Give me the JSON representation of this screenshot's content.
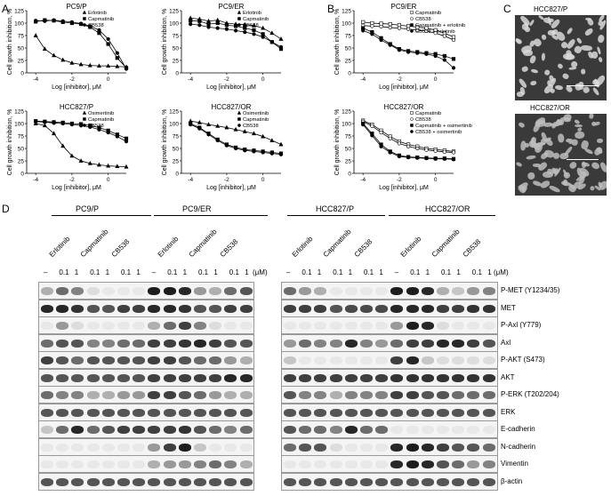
{
  "panel_letters": {
    "A": "A",
    "B": "B",
    "C": "C",
    "D": "D"
  },
  "axis": {
    "ylabel": "Cell growth inhibition, %",
    "xlabel": "Log [inhibitor], μM",
    "yticks": [
      "0",
      "25",
      "50",
      "75",
      "100",
      "125"
    ],
    "xticks": [
      "-4",
      "-2",
      "0"
    ]
  },
  "chart_data": [
    {
      "type": "line",
      "title": "PC9/P",
      "xlim": [
        -4.5,
        1
      ],
      "ylim": [
        0,
        125
      ],
      "legend": "top-right",
      "series": [
        {
          "name": "Erlotinib",
          "marker": "triangle",
          "x": [
            -4,
            -3.5,
            -3,
            -2.5,
            -2,
            -1.5,
            -1,
            -0.5,
            0,
            0.5,
            1
          ],
          "values": [
            75,
            48,
            35,
            26,
            20,
            17,
            15,
            14,
            14,
            13,
            12
          ]
        },
        {
          "name": "Capmatinib",
          "marker": "square",
          "x": [
            -4,
            -3.5,
            -3,
            -2.5,
            -2,
            -1.5,
            -1,
            -0.5,
            0,
            0.5,
            1
          ],
          "values": [
            103,
            106,
            105,
            102,
            100,
            98,
            92,
            80,
            58,
            30,
            10
          ]
        },
        {
          "name": "CB538",
          "marker": "circle",
          "x": [
            -4,
            -3.5,
            -3,
            -2.5,
            -2,
            -1.5,
            -1,
            -0.5,
            0,
            0.5,
            1
          ],
          "values": [
            105,
            104,
            106,
            104,
            102,
            99,
            94,
            86,
            68,
            40,
            8
          ]
        }
      ]
    },
    {
      "type": "line",
      "title": "PC9/ER",
      "xlim": [
        -4.5,
        1
      ],
      "ylim": [
        0,
        125
      ],
      "legend": "top-right",
      "series": [
        {
          "name": "Erlotinib",
          "marker": "triangle",
          "x": [
            -4,
            -3.5,
            -3,
            -2.5,
            -2,
            -1.5,
            -1,
            -0.5,
            0,
            0.5,
            1
          ],
          "values": [
            110,
            108,
            104,
            106,
            100,
            98,
            97,
            95,
            90,
            80,
            68
          ]
        },
        {
          "name": "Capmatinib",
          "marker": "square",
          "x": [
            -4,
            -3.5,
            -3,
            -2.5,
            -2,
            -1.5,
            -1,
            -0.5,
            0,
            0.5,
            1
          ],
          "values": [
            105,
            104,
            98,
            100,
            96,
            94,
            90,
            86,
            78,
            62,
            48
          ]
        },
        {
          "name": "CB538",
          "marker": "circle",
          "x": [
            -4,
            -3.5,
            -3,
            -2.5,
            -2,
            -1.5,
            -1,
            -0.5,
            0,
            0.5,
            1
          ],
          "values": [
            98,
            96,
            92,
            90,
            88,
            85,
            82,
            78,
            72,
            62,
            52
          ]
        }
      ]
    },
    {
      "type": "line",
      "title": "PC9/ER",
      "xlim": [
        -4.5,
        1
      ],
      "ylim": [
        0,
        125
      ],
      "legend": "top-right",
      "series": [
        {
          "name": "Capmatinib",
          "marker": "open-square",
          "x": [
            -4,
            -3.5,
            -3,
            -2.5,
            -2,
            -1.5,
            -1,
            -0.5,
            0,
            0.5,
            1
          ],
          "values": [
            102,
            100,
            99,
            98,
            96,
            94,
            92,
            90,
            86,
            80,
            72
          ]
        },
        {
          "name": "CB538",
          "marker": "open-circle",
          "x": [
            -4,
            -3.5,
            -3,
            -2.5,
            -2,
            -1.5,
            -1,
            -0.5,
            0,
            0.5,
            1
          ],
          "values": [
            95,
            94,
            93,
            91,
            90,
            88,
            86,
            84,
            80,
            74,
            66
          ]
        },
        {
          "name": "Capmatinib + erlotinib",
          "marker": "square",
          "x": [
            -4,
            -3.5,
            -3,
            -2.5,
            -2,
            -1.5,
            -1,
            -0.5,
            0,
            0.5,
            1
          ],
          "values": [
            90,
            82,
            70,
            58,
            48,
            44,
            42,
            40,
            38,
            34,
            28
          ]
        },
        {
          "name": "CB538 + erlotinib",
          "marker": "circle",
          "x": [
            -4,
            -3.5,
            -3,
            -2.5,
            -2,
            -1.5,
            -1,
            -0.5,
            0,
            0.5,
            1
          ],
          "values": [
            85,
            78,
            66,
            56,
            46,
            42,
            40,
            38,
            34,
            26,
            10
          ]
        }
      ]
    },
    {
      "type": "line",
      "title": "HCC827/P",
      "xlim": [
        -4.5,
        1
      ],
      "ylim": [
        0,
        125
      ],
      "legend": "top-right",
      "series": [
        {
          "name": "Osimertinib",
          "marker": "triangle",
          "x": [
            -4,
            -3.5,
            -3,
            -2.5,
            -2,
            -1.5,
            -1,
            -0.5,
            0,
            0.5,
            1
          ],
          "values": [
            100,
            96,
            80,
            55,
            35,
            25,
            20,
            17,
            15,
            14,
            13
          ]
        },
        {
          "name": "Capmatinib",
          "marker": "square",
          "x": [
            -4,
            -3.5,
            -3,
            -2.5,
            -2,
            -1.5,
            -1,
            -0.5,
            0,
            0.5,
            1
          ],
          "values": [
            105,
            104,
            103,
            102,
            100,
            99,
            96,
            92,
            86,
            78,
            70
          ]
        },
        {
          "name": "CB538",
          "marker": "circle",
          "x": [
            -4,
            -3.5,
            -3,
            -2.5,
            -2,
            -1.5,
            -1,
            -0.5,
            0,
            0.5,
            1
          ],
          "values": [
            104,
            103,
            101,
            100,
            98,
            96,
            93,
            88,
            82,
            74,
            64
          ]
        }
      ]
    },
    {
      "type": "line",
      "title": "HCC827/OR",
      "xlim": [
        -4.5,
        1
      ],
      "ylim": [
        0,
        125
      ],
      "legend": "top-right",
      "series": [
        {
          "name": "Osimertinib",
          "marker": "triangle",
          "x": [
            -4,
            -3.5,
            -3,
            -2.5,
            -2,
            -1.5,
            -1,
            -0.5,
            0,
            0.5,
            1
          ],
          "values": [
            105,
            102,
            98,
            95,
            92,
            88,
            84,
            80,
            74,
            66,
            58
          ]
        },
        {
          "name": "Capmatinib",
          "marker": "square",
          "x": [
            -4,
            -3.5,
            -3,
            -2.5,
            -2,
            -1.5,
            -1,
            -0.5,
            0,
            0.5,
            1
          ],
          "values": [
            100,
            92,
            80,
            68,
            58,
            52,
            48,
            46,
            44,
            42,
            40
          ]
        },
        {
          "name": "CB538",
          "marker": "circle",
          "x": [
            -4,
            -3.5,
            -3,
            -2.5,
            -2,
            -1.5,
            -1,
            -0.5,
            0,
            0.5,
            1
          ],
          "values": [
            98,
            90,
            78,
            66,
            56,
            50,
            46,
            44,
            42,
            40,
            38
          ]
        }
      ]
    },
    {
      "type": "line",
      "title": "HCC827/OR",
      "xlim": [
        -4.5,
        1
      ],
      "ylim": [
        0,
        125
      ],
      "legend": "top-right",
      "series": [
        {
          "name": "Capmatinib",
          "marker": "open-square",
          "x": [
            -4,
            -3.5,
            -3,
            -2.5,
            -2,
            -1.5,
            -1,
            -0.5,
            0,
            0.5,
            1
          ],
          "values": [
            106,
            98,
            86,
            74,
            64,
            58,
            54,
            50,
            48,
            46,
            44
          ]
        },
        {
          "name": "CB538",
          "marker": "open-circle",
          "x": [
            -4,
            -3.5,
            -3,
            -2.5,
            -2,
            -1.5,
            -1,
            -0.5,
            0,
            0.5,
            1
          ],
          "values": [
            104,
            95,
            82,
            70,
            60,
            54,
            50,
            47,
            45,
            43,
            42
          ]
        },
        {
          "name": "Capmatinib + osimertinib",
          "marker": "square",
          "x": [
            -4,
            -3.5,
            -3,
            -2.5,
            -2,
            -1.5,
            -1,
            -0.5,
            0,
            0.5,
            1
          ],
          "values": [
            100,
            80,
            58,
            44,
            36,
            33,
            32,
            31,
            30,
            30,
            29
          ]
        },
        {
          "name": "CB538 + osimertinib",
          "marker": "circle",
          "x": [
            -4,
            -3.5,
            -3,
            -2.5,
            -2,
            -1.5,
            -1,
            -0.5,
            0,
            0.5,
            1
          ],
          "values": [
            98,
            76,
            54,
            42,
            34,
            32,
            31,
            30,
            29,
            29,
            28
          ]
        }
      ]
    }
  ],
  "micrographs": [
    {
      "label": "HCC827/P"
    },
    {
      "label": "HCC827/OR"
    }
  ],
  "blot": {
    "groups_left": [
      "PC9/P",
      "PC9/ER"
    ],
    "groups_right": [
      "HCC827/P",
      "HCC827/OR"
    ],
    "drugs_left": [
      "Erlotinib",
      "Capmatinib",
      "CB538",
      "Erlotinib",
      "Capmatinib",
      "CB538"
    ],
    "drugs_right": [
      "Erlotinib",
      "Capmatinib",
      "CB538",
      "Erlotinib",
      "Capmatinib",
      "CB538"
    ],
    "dose_labels": [
      "–",
      "0.1",
      "1",
      "0.1",
      "1",
      "0.1",
      "1"
    ],
    "unit": "(μM)",
    "rows": [
      {
        "label": "P-MET (Y1234/35)",
        "left": [
          0.3,
          0.6,
          0.5,
          0.1,
          0.05,
          0.05,
          0.05,
          0.95,
          0.95,
          0.9,
          0.4,
          0.3,
          0.6,
          0.7
        ],
        "right": [
          0.6,
          0.4,
          0.3,
          0.05,
          0.05,
          0.05,
          0.05,
          0.95,
          0.95,
          0.9,
          0.3,
          0.2,
          0.4,
          0.5
        ]
      },
      {
        "label": "MET",
        "left": [
          0.9,
          0.9,
          0.85,
          0.7,
          0.7,
          0.8,
          0.8,
          0.9,
          0.9,
          0.85,
          0.7,
          0.7,
          0.8,
          0.8
        ],
        "right": [
          0.8,
          0.8,
          0.8,
          0.7,
          0.75,
          0.75,
          0.75,
          0.9,
          0.9,
          0.9,
          0.8,
          0.8,
          0.85,
          0.85
        ]
      },
      {
        "label": "P-Axl (Y779)",
        "left": [
          0.05,
          0.4,
          0.1,
          0.05,
          0.05,
          0.05,
          0.05,
          0.3,
          0.6,
          0.8,
          0.5,
          0.1,
          0.05,
          0.05
        ],
        "right": [
          0.05,
          0.05,
          0.05,
          0.05,
          0.05,
          0.05,
          0.05,
          0.4,
          0.95,
          0.9,
          0.1,
          0.05,
          0.05,
          0.05
        ]
      },
      {
        "label": "Axl",
        "left": [
          0.6,
          0.7,
          0.7,
          0.5,
          0.5,
          0.6,
          0.6,
          0.8,
          0.8,
          0.85,
          0.9,
          0.8,
          0.7,
          0.7
        ],
        "right": [
          0.4,
          0.6,
          0.5,
          0.5,
          0.9,
          0.5,
          0.4,
          0.6,
          0.8,
          0.8,
          0.9,
          0.9,
          0.8,
          0.7
        ]
      },
      {
        "label": "P-AKT (S473)",
        "left": [
          0.8,
          0.7,
          0.6,
          0.7,
          0.7,
          0.7,
          0.7,
          0.8,
          0.8,
          0.7,
          0.6,
          0.6,
          0.4,
          0.3
        ],
        "right": [
          0.2,
          0.05,
          0.05,
          0.05,
          0.05,
          0.05,
          0.05,
          0.8,
          0.9,
          0.2,
          0.1,
          0.1,
          0.1,
          0.1
        ]
      },
      {
        "label": "AKT",
        "left": [
          0.7,
          0.7,
          0.7,
          0.7,
          0.7,
          0.7,
          0.7,
          0.8,
          0.8,
          0.8,
          0.8,
          0.8,
          0.9,
          0.9
        ],
        "right": [
          0.8,
          0.8,
          0.8,
          0.8,
          0.8,
          0.8,
          0.8,
          0.85,
          0.85,
          0.85,
          0.85,
          0.85,
          0.85,
          0.85
        ]
      },
      {
        "label": "P-ERK (T202/204)",
        "left": [
          0.6,
          0.5,
          0.5,
          0.3,
          0.3,
          0.4,
          0.4,
          0.8,
          0.8,
          0.7,
          0.6,
          0.4,
          0.3,
          0.3
        ],
        "right": [
          0.7,
          0.5,
          0.5,
          0.3,
          0.5,
          0.5,
          0.5,
          0.8,
          0.8,
          0.7,
          0.7,
          0.6,
          0.6,
          0.6
        ]
      },
      {
        "label": "ERK",
        "left": [
          0.7,
          0.7,
          0.7,
          0.7,
          0.7,
          0.7,
          0.7,
          0.7,
          0.7,
          0.7,
          0.7,
          0.7,
          0.7,
          0.7
        ],
        "right": [
          0.7,
          0.7,
          0.7,
          0.7,
          0.7,
          0.7,
          0.7,
          0.7,
          0.7,
          0.7,
          0.7,
          0.7,
          0.7,
          0.7
        ]
      },
      {
        "label": "E-cadherin",
        "left": [
          0.2,
          0.6,
          0.9,
          0.6,
          0.7,
          0.8,
          0.8,
          0.8,
          0.8,
          0.85,
          0.7,
          0.6,
          0.5,
          0.6
        ],
        "right": [
          0.7,
          0.6,
          0.6,
          0.5,
          0.9,
          0.6,
          0.6,
          0.05,
          0.05,
          0.05,
          0.05,
          0.05,
          0.05,
          0.05
        ]
      },
      {
        "label": "N-cadherin",
        "left": [
          0.05,
          0.05,
          0.05,
          0.05,
          0.05,
          0.05,
          0.05,
          0.4,
          0.8,
          0.95,
          0.2,
          0.05,
          0.05,
          0.05
        ],
        "right": [
          0.6,
          0.7,
          0.7,
          0.1,
          0.05,
          0.05,
          0.05,
          0.9,
          0.95,
          0.9,
          0.8,
          0.7,
          0.7,
          0.6
        ]
      },
      {
        "label": "Vimentin",
        "left": [
          0.05,
          0.05,
          0.05,
          0.05,
          0.05,
          0.05,
          0.05,
          0.3,
          0.4,
          0.4,
          0.5,
          0.6,
          0.5,
          0.3
        ],
        "right": [
          0.05,
          0.05,
          0.05,
          0.05,
          0.05,
          0.05,
          0.05,
          0.9,
          0.95,
          0.9,
          0.7,
          0.6,
          0.4,
          0.5
        ]
      },
      {
        "label": "β-actin",
        "left": [
          0.7,
          0.7,
          0.7,
          0.7,
          0.7,
          0.7,
          0.7,
          0.7,
          0.7,
          0.7,
          0.7,
          0.7,
          0.7,
          0.7
        ],
        "right": [
          0.7,
          0.7,
          0.7,
          0.7,
          0.7,
          0.7,
          0.7,
          0.7,
          0.7,
          0.7,
          0.7,
          0.7,
          0.7,
          0.7
        ]
      }
    ]
  }
}
